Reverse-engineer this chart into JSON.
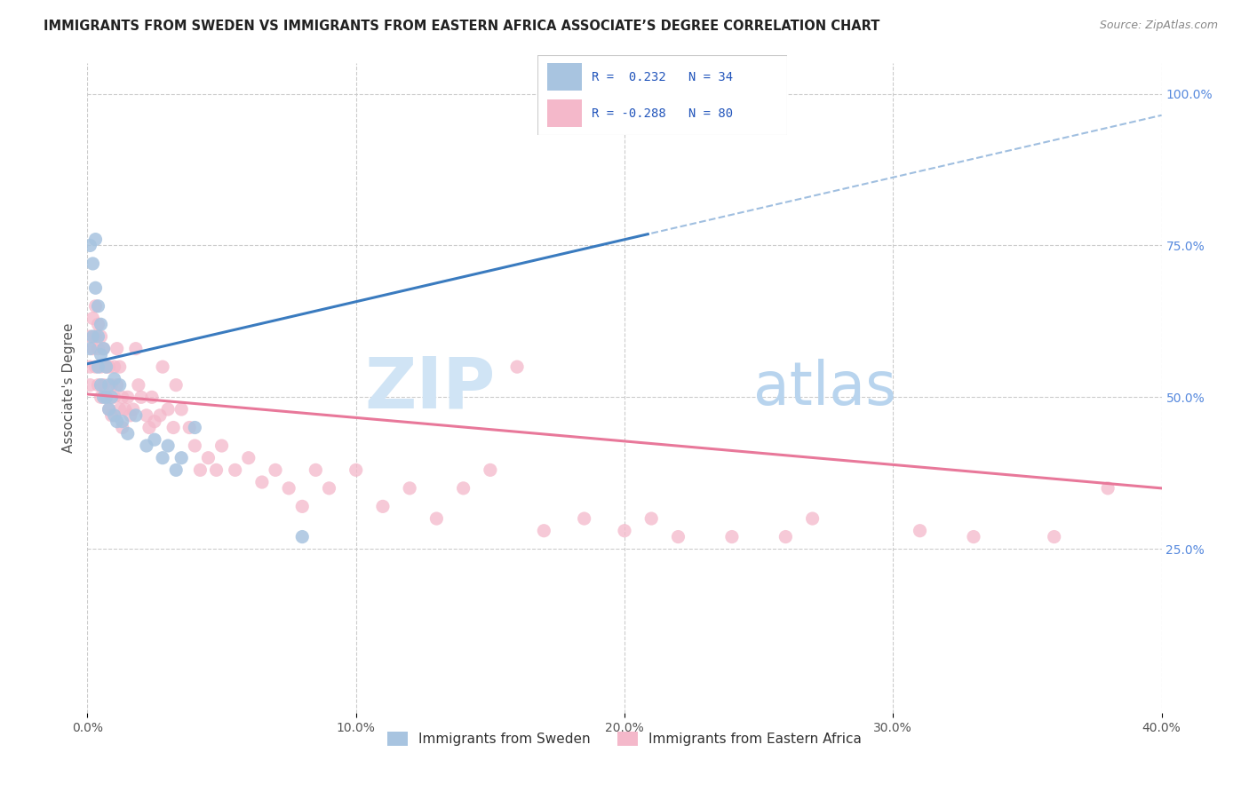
{
  "title": "IMMIGRANTS FROM SWEDEN VS IMMIGRANTS FROM EASTERN AFRICA ASSOCIATE’S DEGREE CORRELATION CHART",
  "source": "Source: ZipAtlas.com",
  "ylabel": "Associate's Degree",
  "r_sweden": 0.232,
  "n_sweden": 34,
  "r_eastern_africa": -0.288,
  "n_eastern_africa": 80,
  "color_sweden": "#a8c4e0",
  "color_eastern_africa": "#f4b8ca",
  "color_sweden_line": "#3a7bbf",
  "color_eastern_africa_line": "#e8789a",
  "sweden_x": [
    0.001,
    0.001,
    0.002,
    0.002,
    0.003,
    0.003,
    0.004,
    0.004,
    0.004,
    0.005,
    0.005,
    0.005,
    0.006,
    0.006,
    0.007,
    0.007,
    0.008,
    0.008,
    0.009,
    0.01,
    0.01,
    0.011,
    0.012,
    0.013,
    0.015,
    0.018,
    0.022,
    0.025,
    0.028,
    0.03,
    0.033,
    0.035,
    0.04,
    0.08
  ],
  "sweden_y": [
    0.58,
    0.75,
    0.72,
    0.6,
    0.76,
    0.68,
    0.65,
    0.6,
    0.55,
    0.62,
    0.57,
    0.52,
    0.58,
    0.5,
    0.55,
    0.5,
    0.52,
    0.48,
    0.5,
    0.47,
    0.53,
    0.46,
    0.52,
    0.46,
    0.44,
    0.47,
    0.42,
    0.43,
    0.4,
    0.42,
    0.38,
    0.4,
    0.45,
    0.27
  ],
  "eastern_africa_x": [
    0.001,
    0.001,
    0.001,
    0.002,
    0.002,
    0.003,
    0.003,
    0.003,
    0.004,
    0.004,
    0.004,
    0.005,
    0.005,
    0.005,
    0.006,
    0.006,
    0.007,
    0.007,
    0.008,
    0.008,
    0.009,
    0.009,
    0.01,
    0.01,
    0.011,
    0.011,
    0.012,
    0.012,
    0.013,
    0.013,
    0.014,
    0.015,
    0.016,
    0.017,
    0.018,
    0.019,
    0.02,
    0.022,
    0.023,
    0.024,
    0.025,
    0.027,
    0.028,
    0.03,
    0.032,
    0.033,
    0.035,
    0.038,
    0.04,
    0.042,
    0.045,
    0.048,
    0.05,
    0.055,
    0.06,
    0.065,
    0.07,
    0.075,
    0.08,
    0.085,
    0.09,
    0.1,
    0.11,
    0.12,
    0.13,
    0.14,
    0.15,
    0.16,
    0.17,
    0.185,
    0.2,
    0.21,
    0.22,
    0.24,
    0.26,
    0.27,
    0.31,
    0.33,
    0.36,
    0.38
  ],
  "eastern_africa_y": [
    0.52,
    0.55,
    0.6,
    0.58,
    0.63,
    0.6,
    0.65,
    0.55,
    0.62,
    0.58,
    0.52,
    0.6,
    0.55,
    0.5,
    0.58,
    0.52,
    0.55,
    0.5,
    0.55,
    0.48,
    0.52,
    0.47,
    0.55,
    0.5,
    0.58,
    0.52,
    0.55,
    0.48,
    0.5,
    0.45,
    0.48,
    0.5,
    0.47,
    0.48,
    0.58,
    0.52,
    0.5,
    0.47,
    0.45,
    0.5,
    0.46,
    0.47,
    0.55,
    0.48,
    0.45,
    0.52,
    0.48,
    0.45,
    0.42,
    0.38,
    0.4,
    0.38,
    0.42,
    0.38,
    0.4,
    0.36,
    0.38,
    0.35,
    0.32,
    0.38,
    0.35,
    0.38,
    0.32,
    0.35,
    0.3,
    0.35,
    0.38,
    0.55,
    0.28,
    0.3,
    0.28,
    0.3,
    0.27,
    0.27,
    0.27,
    0.3,
    0.28,
    0.27,
    0.27,
    0.35
  ],
  "xlim": [
    0.0,
    0.4
  ],
  "ylim": [
    -0.02,
    1.05
  ],
  "ytick_vals": [
    0.25,
    0.5,
    0.75,
    1.0
  ],
  "ytick_labels": [
    "25.0%",
    "50.0%",
    "75.0%",
    "100.0%"
  ],
  "xtick_vals": [
    0.0,
    0.1,
    0.2,
    0.3,
    0.4
  ],
  "xtick_labels": [
    "0.0%",
    "10.0%",
    "20.0%",
    "30.0%",
    "40.0%"
  ],
  "legend_r_color": "#2255bb",
  "grid_color": "#cccccc",
  "watermark_color": "#d0e4f5",
  "sweden_line_end_solid": 0.21,
  "bottom_legend_labels": [
    "Immigrants from Sweden",
    "Immigrants from Eastern Africa"
  ]
}
